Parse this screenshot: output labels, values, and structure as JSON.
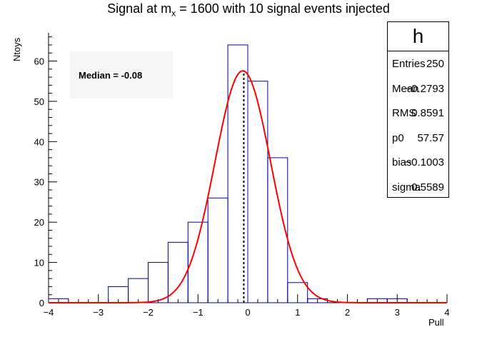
{
  "chart_data": {
    "type": "bar",
    "title_parts": {
      "left": "Signal at m",
      "sub": "x",
      "right": " = 1600 with 10 signal events injected"
    },
    "xlabel": "Pull",
    "ylabel": "Ntoys",
    "xlim": [
      -4,
      4
    ],
    "ylim": [
      0,
      67
    ],
    "x_ticks": [
      -4,
      -3,
      -2,
      -1,
      0,
      1,
      2,
      3,
      4
    ],
    "x_tick_labels": [
      "−4",
      "−3",
      "−2",
      "−1",
      "0",
      "1",
      "2",
      "3",
      "4"
    ],
    "y_ticks": [
      0,
      10,
      20,
      30,
      40,
      50,
      60
    ],
    "histogram": {
      "bin_edges": [
        -4.0,
        -3.6,
        -3.2,
        -2.8,
        -2.4,
        -2.0,
        -1.6,
        -1.2,
        -0.8,
        -0.4,
        0.0,
        0.4,
        0.8,
        1.2,
        1.6,
        2.0,
        2.4,
        2.8,
        3.2,
        3.6,
        4.0
      ],
      "counts": [
        1,
        0,
        0,
        4,
        6,
        10,
        15,
        20,
        26,
        64,
        55,
        36,
        5,
        1,
        0,
        0,
        1,
        1,
        0,
        0
      ],
      "color": "#000099"
    },
    "fit": {
      "type": "gaussian",
      "p0": 57.57,
      "mean": -0.1003,
      "sigma": 0.5589,
      "color": "#ff0000"
    },
    "median_line": {
      "x": -0.08,
      "color": "#000000"
    },
    "stats_box": {
      "name": "h",
      "rows": [
        {
          "key": "Entries",
          "value": "250"
        },
        {
          "key": "Mean",
          "value": "−0.2793"
        },
        {
          "key": "RMS",
          "value": "0.8591"
        },
        {
          "key": "p0",
          "value": "57.57"
        },
        {
          "key": "bias",
          "value": "−0.1003"
        },
        {
          "key": "sigma",
          "value": "0.5589"
        }
      ]
    },
    "annotation": "Median = -0.08"
  }
}
